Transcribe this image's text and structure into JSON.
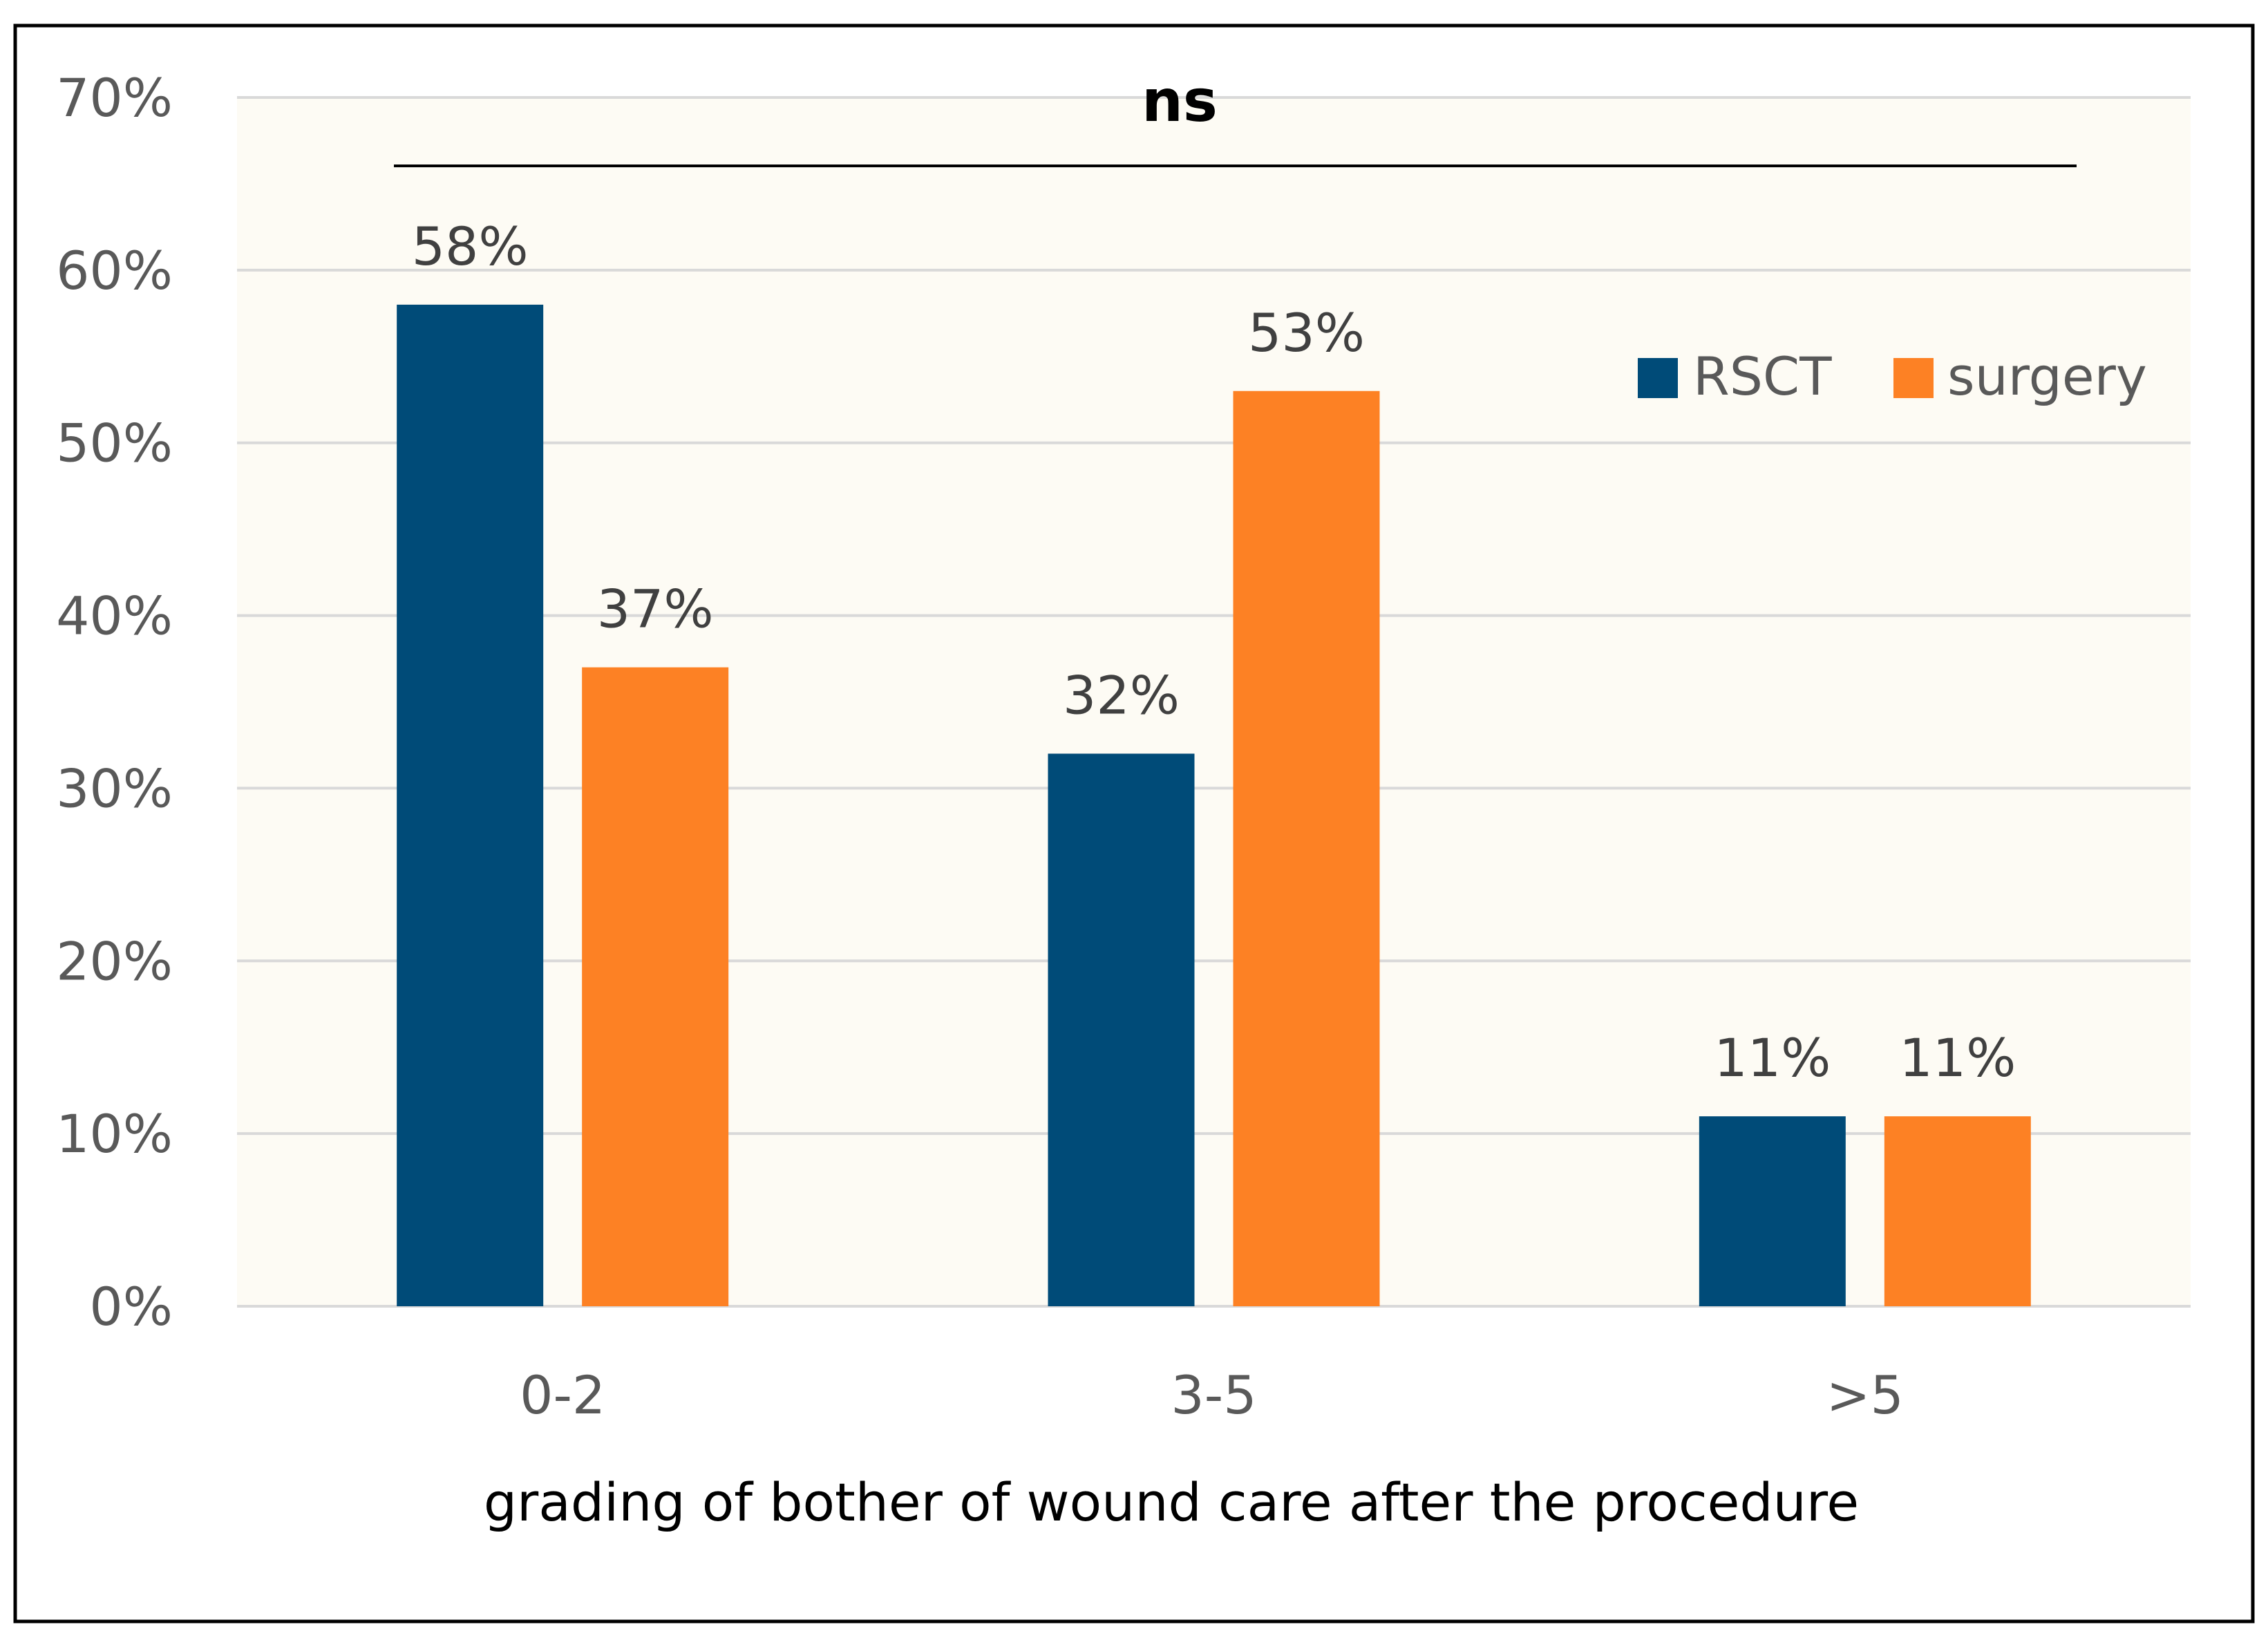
{
  "chart_data": {
    "type": "bar",
    "categories": [
      "0-2",
      "3-5",
      ">5"
    ],
    "series": [
      {
        "name": "RSCT",
        "values": [
          58,
          32,
          11
        ],
        "labels": [
          "58%",
          "32%",
          "11%"
        ],
        "color": "#004b78"
      },
      {
        "name": "surgery",
        "values": [
          37,
          53,
          11
        ],
        "labels": [
          "37%",
          "53%",
          "11%"
        ],
        "color": "#fd8124"
      }
    ],
    "yticks": [
      "0%",
      "10%",
      "20%",
      "30%",
      "40%",
      "50%",
      "60%",
      "70%"
    ],
    "ylim": [
      0,
      70
    ],
    "xlabel": "grading of bother of wound care after the procedure",
    "ylabel": "",
    "title": "",
    "annotation": "ns",
    "legend_position": "top-right",
    "grid": true,
    "plot_background": "#fdfbf4",
    "gridline_color": "#d9d9d9"
  }
}
